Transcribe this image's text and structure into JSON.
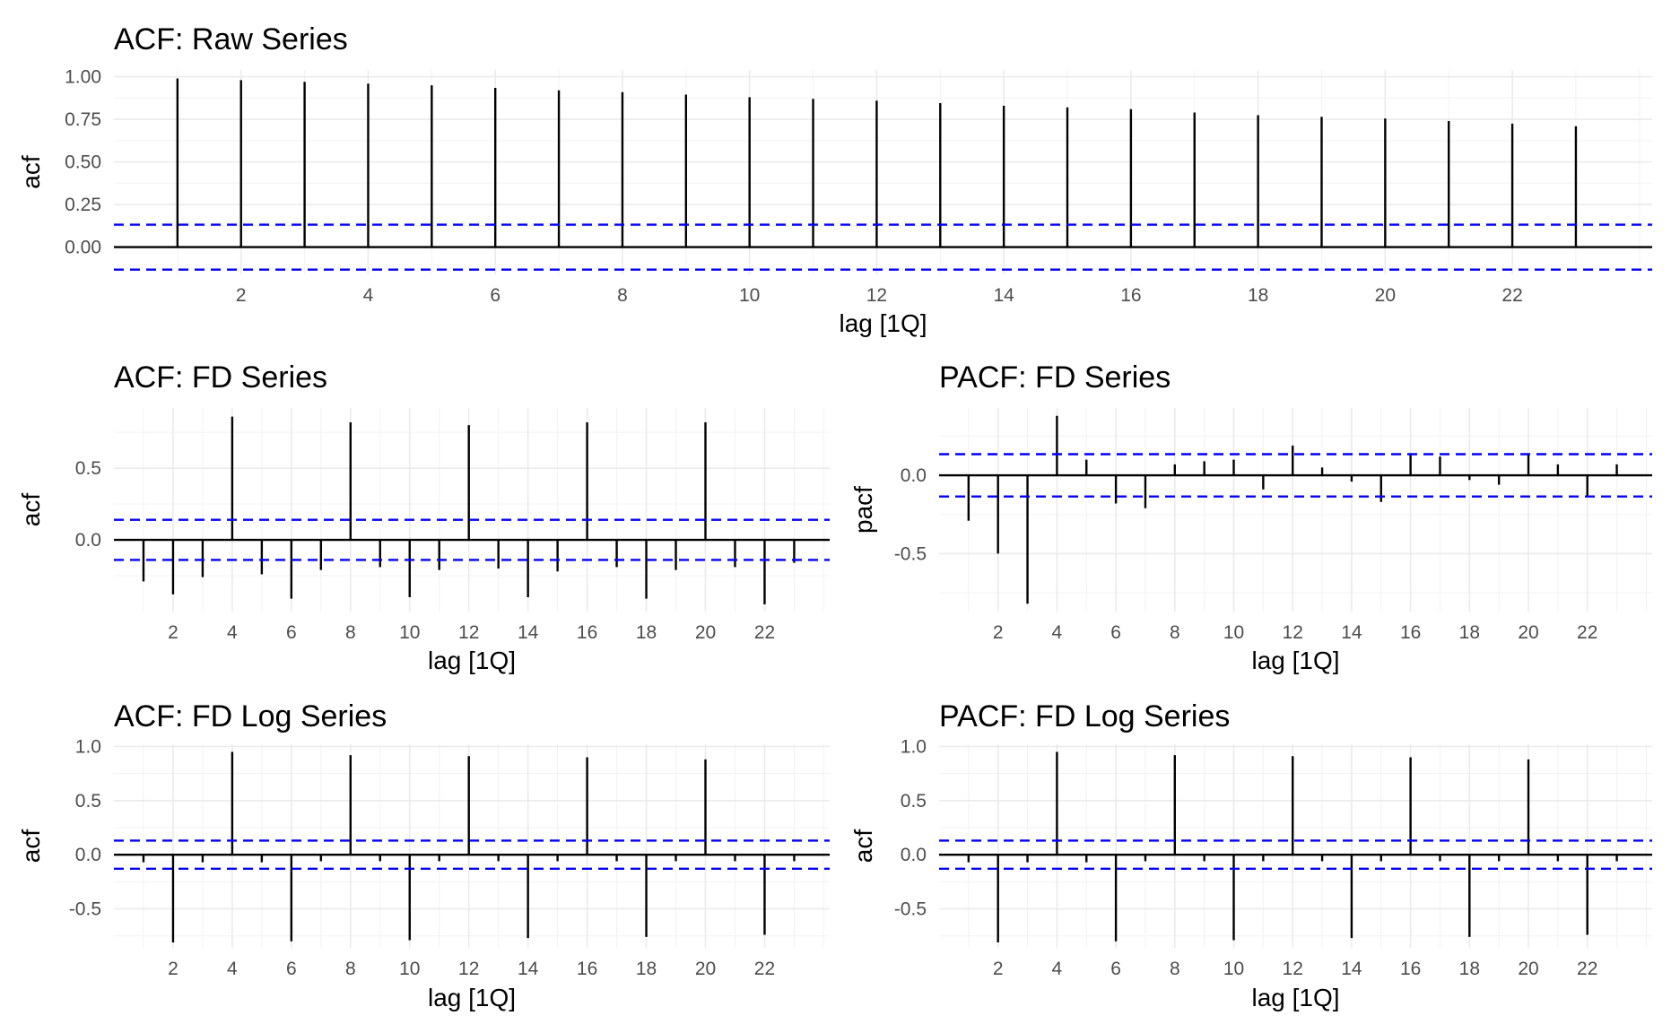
{
  "chart_data": [
    {
      "type": "bar",
      "title": "ACF: Raw Series",
      "xlabel": "lag [1Q]",
      "ylabel": "acf",
      "x": [
        1,
        2,
        3,
        4,
        5,
        6,
        7,
        8,
        9,
        10,
        11,
        12,
        13,
        14,
        15,
        16,
        17,
        18,
        19,
        20,
        21,
        22,
        23
      ],
      "values": [
        0.99,
        0.98,
        0.97,
        0.96,
        0.95,
        0.935,
        0.92,
        0.91,
        0.895,
        0.88,
        0.87,
        0.86,
        0.845,
        0.83,
        0.82,
        0.81,
        0.79,
        0.775,
        0.765,
        0.755,
        0.74,
        0.725,
        0.71
      ],
      "ci": 0.132,
      "ylim": [
        -0.16,
        1.04
      ],
      "xlim": [
        0,
        24.2
      ],
      "yticks": [
        0,
        0.25,
        0.5,
        0.75,
        1
      ],
      "ytick_labels": [
        "0.00",
        "0.25",
        "0.50",
        "0.75",
        "1.00"
      ],
      "xticks": [
        2,
        4,
        6,
        8,
        10,
        12,
        14,
        16,
        18,
        20,
        22
      ],
      "xtick_labels": [
        "2",
        "4",
        "6",
        "8",
        "10",
        "12",
        "14",
        "16",
        "18",
        "20",
        "22"
      ],
      "grid": true
    },
    {
      "type": "bar",
      "title": "ACF: FD Series",
      "xlabel": "lag [1Q]",
      "ylabel": "acf",
      "x": [
        1,
        2,
        3,
        4,
        5,
        6,
        7,
        8,
        9,
        10,
        11,
        12,
        13,
        14,
        15,
        16,
        17,
        18,
        19,
        20,
        21,
        22,
        23
      ],
      "values": [
        -0.29,
        -0.38,
        -0.26,
        0.86,
        -0.24,
        -0.41,
        -0.21,
        0.82,
        -0.19,
        -0.4,
        -0.21,
        0.8,
        -0.2,
        -0.4,
        -0.22,
        0.82,
        -0.19,
        -0.41,
        -0.21,
        0.82,
        -0.19,
        -0.45,
        -0.16
      ],
      "ci": 0.14,
      "ylim": [
        -0.5,
        0.92
      ],
      "xlim": [
        0,
        24.2
      ],
      "yticks": [
        0,
        0.5
      ],
      "ytick_labels": [
        "0.0",
        "0.5"
      ],
      "xticks": [
        2,
        4,
        6,
        8,
        10,
        12,
        14,
        16,
        18,
        20,
        22
      ],
      "xtick_labels": [
        "2",
        "4",
        "6",
        "8",
        "10",
        "12",
        "14",
        "16",
        "18",
        "20",
        "22"
      ],
      "grid": true
    },
    {
      "type": "bar",
      "title": "PACF: FD Series",
      "xlabel": "lag [1Q]",
      "ylabel": "pacf",
      "x": [
        1,
        2,
        3,
        4,
        5,
        6,
        7,
        8,
        9,
        10,
        11,
        12,
        13,
        14,
        15,
        16,
        17,
        18,
        19,
        20,
        21,
        22,
        23
      ],
      "values": [
        -0.29,
        -0.5,
        -0.82,
        0.38,
        0.1,
        -0.18,
        -0.21,
        0.07,
        0.09,
        0.1,
        -0.09,
        0.19,
        0.05,
        -0.04,
        -0.17,
        0.13,
        0.12,
        -0.03,
        -0.06,
        0.13,
        0.07,
        -0.13,
        0.07
      ],
      "ci": 0.135,
      "ylim": [
        -0.87,
        0.43
      ],
      "xlim": [
        0,
        24.2
      ],
      "yticks": [
        -0.5,
        0
      ],
      "ytick_labels": [
        "-0.5",
        "0.0"
      ],
      "xticks": [
        2,
        4,
        6,
        8,
        10,
        12,
        14,
        16,
        18,
        20,
        22
      ],
      "xtick_labels": [
        "2",
        "4",
        "6",
        "8",
        "10",
        "12",
        "14",
        "16",
        "18",
        "20",
        "22"
      ],
      "grid": true
    },
    {
      "type": "bar",
      "title": "ACF: FD Log Series",
      "xlabel": "lag [1Q]",
      "ylabel": "acf",
      "x": [
        1,
        2,
        3,
        4,
        5,
        6,
        7,
        8,
        9,
        10,
        11,
        12,
        13,
        14,
        15,
        16,
        17,
        18,
        19,
        20,
        21,
        22,
        23
      ],
      "values": [
        -0.07,
        -0.81,
        -0.07,
        0.95,
        -0.07,
        -0.8,
        -0.06,
        0.92,
        -0.06,
        -0.79,
        -0.06,
        0.91,
        -0.06,
        -0.77,
        -0.06,
        0.9,
        -0.06,
        -0.76,
        -0.06,
        0.88,
        -0.06,
        -0.74,
        -0.06
      ],
      "ci": 0.13,
      "ylim": [
        -0.86,
        1.02
      ],
      "xlim": [
        0,
        24.2
      ],
      "yticks": [
        -0.5,
        0,
        0.5,
        1
      ],
      "ytick_labels": [
        "-0.5",
        "0.0",
        "0.5",
        "1.0"
      ],
      "xticks": [
        2,
        4,
        6,
        8,
        10,
        12,
        14,
        16,
        18,
        20,
        22
      ],
      "xtick_labels": [
        "2",
        "4",
        "6",
        "8",
        "10",
        "12",
        "14",
        "16",
        "18",
        "20",
        "22"
      ],
      "grid": true
    },
    {
      "type": "bar",
      "title": "PACF: FD Log Series",
      "xlabel": "lag [1Q]",
      "ylabel": "acf",
      "x": [
        1,
        2,
        3,
        4,
        5,
        6,
        7,
        8,
        9,
        10,
        11,
        12,
        13,
        14,
        15,
        16,
        17,
        18,
        19,
        20,
        21,
        22,
        23
      ],
      "values": [
        -0.07,
        -0.81,
        -0.07,
        0.95,
        -0.07,
        -0.8,
        -0.06,
        0.92,
        -0.06,
        -0.79,
        -0.06,
        0.91,
        -0.06,
        -0.77,
        -0.06,
        0.9,
        -0.06,
        -0.76,
        -0.06,
        0.88,
        -0.06,
        -0.74,
        -0.06
      ],
      "ci": 0.13,
      "ylim": [
        -0.86,
        1.02
      ],
      "xlim": [
        0,
        24.2
      ],
      "yticks": [
        -0.5,
        0,
        0.5,
        1
      ],
      "ytick_labels": [
        "-0.5",
        "0.0",
        "0.5",
        "1.0"
      ],
      "xticks": [
        2,
        4,
        6,
        8,
        10,
        12,
        14,
        16,
        18,
        20,
        22
      ],
      "xtick_labels": [
        "2",
        "4",
        "6",
        "8",
        "10",
        "12",
        "14",
        "16",
        "18",
        "20",
        "22"
      ],
      "grid": true
    }
  ],
  "colors": {
    "spike": "#000000",
    "confidence_band": "#0000ff",
    "grid": "#ebebeb",
    "tick_text": "#4d4d4d"
  }
}
